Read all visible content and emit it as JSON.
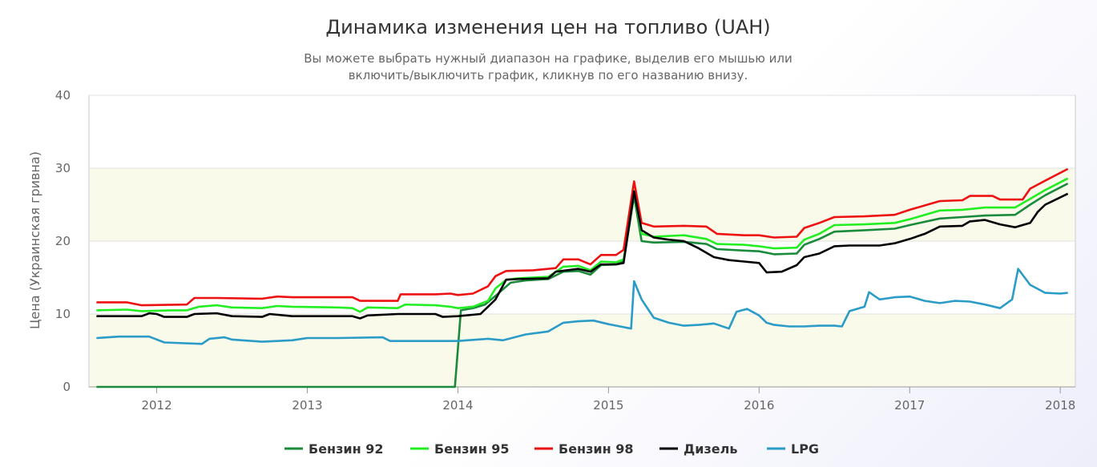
{
  "chart_data": {
    "type": "line",
    "title": "Динамика изменения цен на топливо (UAH)",
    "subtitle_lines": [
      "Вы можете выбрать нужный диапазон на графике, выделив его мышью или",
      "включить/выключить график, кликнув по его названию внизу."
    ],
    "ylabel": "Цена (Украинская гривна)",
    "xlabel": "",
    "ylim": [
      0,
      40
    ],
    "yticks": [
      0,
      10,
      20,
      30,
      40
    ],
    "xlim": [
      2011.55,
      2018.1
    ],
    "xticks": [
      "2012",
      "2013",
      "2014",
      "2015",
      "2016",
      "2017",
      "2018"
    ],
    "grid": true,
    "legend_position": "bottom",
    "band_color": "#fafaeb",
    "series": [
      {
        "name": "Бензин 92",
        "color": "#1a8a3c",
        "points": [
          [
            2011.6,
            0
          ],
          [
            2012,
            0
          ],
          [
            2012.5,
            0
          ],
          [
            2013,
            0
          ],
          [
            2013.5,
            0
          ],
          [
            2013.98,
            0
          ],
          [
            2014.02,
            10.5
          ],
          [
            2014.1,
            10.8
          ],
          [
            2014.18,
            11.3
          ],
          [
            2014.25,
            12.5
          ],
          [
            2014.35,
            14.3
          ],
          [
            2014.45,
            14.6
          ],
          [
            2014.6,
            14.8
          ],
          [
            2014.7,
            15.8
          ],
          [
            2014.8,
            15.9
          ],
          [
            2014.88,
            15.4
          ],
          [
            2014.95,
            16.7
          ],
          [
            2015.05,
            16.8
          ],
          [
            2015.1,
            17.2
          ],
          [
            2015.17,
            26.2
          ],
          [
            2015.22,
            20.0
          ],
          [
            2015.3,
            19.8
          ],
          [
            2015.5,
            19.9
          ],
          [
            2015.65,
            19.6
          ],
          [
            2015.72,
            18.9
          ],
          [
            2015.9,
            18.7
          ],
          [
            2016,
            18.6
          ],
          [
            2016.1,
            18.2
          ],
          [
            2016.25,
            18.3
          ],
          [
            2016.3,
            19.5
          ],
          [
            2016.4,
            20.3
          ],
          [
            2016.5,
            21.3
          ],
          [
            2016.7,
            21.5
          ],
          [
            2016.9,
            21.7
          ],
          [
            2017,
            22.2
          ],
          [
            2017.2,
            23.1
          ],
          [
            2017.35,
            23.3
          ],
          [
            2017.5,
            23.5
          ],
          [
            2017.7,
            23.6
          ],
          [
            2017.8,
            25.0
          ],
          [
            2017.9,
            26.3
          ],
          [
            2018.05,
            27.9
          ]
        ]
      },
      {
        "name": "Бензин 95",
        "color": "#22ee22",
        "points": [
          [
            2011.6,
            10.5
          ],
          [
            2011.8,
            10.6
          ],
          [
            2011.9,
            10.4
          ],
          [
            2012.1,
            10.5
          ],
          [
            2012.2,
            10.5
          ],
          [
            2012.28,
            11.0
          ],
          [
            2012.4,
            11.2
          ],
          [
            2012.5,
            10.9
          ],
          [
            2012.7,
            10.8
          ],
          [
            2012.8,
            11.1
          ],
          [
            2012.9,
            11.0
          ],
          [
            2013.2,
            10.9
          ],
          [
            2013.3,
            10.8
          ],
          [
            2013.35,
            10.3
          ],
          [
            2013.4,
            10.9
          ],
          [
            2013.6,
            10.8
          ],
          [
            2013.65,
            11.3
          ],
          [
            2013.85,
            11.2
          ],
          [
            2013.95,
            11.0
          ],
          [
            2014,
            10.8
          ],
          [
            2014.1,
            11.0
          ],
          [
            2014.2,
            11.8
          ],
          [
            2014.25,
            13.5
          ],
          [
            2014.32,
            14.7
          ],
          [
            2014.4,
            14.9
          ],
          [
            2014.6,
            15.1
          ],
          [
            2014.7,
            16.5
          ],
          [
            2014.8,
            16.6
          ],
          [
            2014.88,
            16.0
          ],
          [
            2014.95,
            17.2
          ],
          [
            2015.05,
            17.1
          ],
          [
            2015.1,
            17.5
          ],
          [
            2015.17,
            27.0
          ],
          [
            2015.22,
            21.0
          ],
          [
            2015.3,
            20.6
          ],
          [
            2015.5,
            20.8
          ],
          [
            2015.65,
            20.3
          ],
          [
            2015.72,
            19.6
          ],
          [
            2015.9,
            19.5
          ],
          [
            2016,
            19.3
          ],
          [
            2016.1,
            19.0
          ],
          [
            2016.25,
            19.1
          ],
          [
            2016.3,
            20.2
          ],
          [
            2016.4,
            21.0
          ],
          [
            2016.5,
            22.2
          ],
          [
            2016.7,
            22.3
          ],
          [
            2016.9,
            22.5
          ],
          [
            2017,
            23.0
          ],
          [
            2017.2,
            24.2
          ],
          [
            2017.35,
            24.3
          ],
          [
            2017.5,
            24.6
          ],
          [
            2017.7,
            24.6
          ],
          [
            2017.8,
            25.8
          ],
          [
            2017.9,
            27.0
          ],
          [
            2018.05,
            28.6
          ]
        ]
      },
      {
        "name": "Бензин 98",
        "color": "#ee1111",
        "points": [
          [
            2011.6,
            11.6
          ],
          [
            2011.8,
            11.6
          ],
          [
            2011.9,
            11.2
          ],
          [
            2012.2,
            11.3
          ],
          [
            2012.25,
            12.2
          ],
          [
            2012.4,
            12.2
          ],
          [
            2012.7,
            12.1
          ],
          [
            2012.8,
            12.4
          ],
          [
            2012.9,
            12.3
          ],
          [
            2013.3,
            12.3
          ],
          [
            2013.35,
            11.8
          ],
          [
            2013.6,
            11.8
          ],
          [
            2013.62,
            12.7
          ],
          [
            2013.85,
            12.7
          ],
          [
            2013.95,
            12.8
          ],
          [
            2014,
            12.6
          ],
          [
            2014.1,
            12.8
          ],
          [
            2014.2,
            13.8
          ],
          [
            2014.25,
            15.2
          ],
          [
            2014.32,
            15.9
          ],
          [
            2014.5,
            16.0
          ],
          [
            2014.65,
            16.3
          ],
          [
            2014.7,
            17.5
          ],
          [
            2014.8,
            17.5
          ],
          [
            2014.88,
            16.8
          ],
          [
            2014.95,
            18.1
          ],
          [
            2015.05,
            18.1
          ],
          [
            2015.1,
            18.8
          ],
          [
            2015.17,
            28.2
          ],
          [
            2015.22,
            22.5
          ],
          [
            2015.3,
            22.0
          ],
          [
            2015.5,
            22.1
          ],
          [
            2015.65,
            22.0
          ],
          [
            2015.72,
            21.0
          ],
          [
            2015.9,
            20.8
          ],
          [
            2016,
            20.8
          ],
          [
            2016.1,
            20.5
          ],
          [
            2016.25,
            20.6
          ],
          [
            2016.3,
            21.8
          ],
          [
            2016.4,
            22.5
          ],
          [
            2016.5,
            23.3
          ],
          [
            2016.7,
            23.4
          ],
          [
            2016.9,
            23.6
          ],
          [
            2017,
            24.3
          ],
          [
            2017.2,
            25.5
          ],
          [
            2017.35,
            25.6
          ],
          [
            2017.4,
            26.2
          ],
          [
            2017.55,
            26.2
          ],
          [
            2017.6,
            25.7
          ],
          [
            2017.75,
            25.7
          ],
          [
            2017.8,
            27.2
          ],
          [
            2017.9,
            28.3
          ],
          [
            2018.05,
            29.9
          ]
        ]
      },
      {
        "name": "Дизель",
        "color": "#000000",
        "points": [
          [
            2011.6,
            9.7
          ],
          [
            2011.9,
            9.7
          ],
          [
            2011.95,
            10.1
          ],
          [
            2012.0,
            10.0
          ],
          [
            2012.05,
            9.6
          ],
          [
            2012.2,
            9.6
          ],
          [
            2012.25,
            10.0
          ],
          [
            2012.4,
            10.1
          ],
          [
            2012.5,
            9.7
          ],
          [
            2012.7,
            9.6
          ],
          [
            2012.75,
            10.0
          ],
          [
            2012.9,
            9.7
          ],
          [
            2013.3,
            9.7
          ],
          [
            2013.35,
            9.4
          ],
          [
            2013.4,
            9.8
          ],
          [
            2013.6,
            10.0
          ],
          [
            2013.85,
            10.0
          ],
          [
            2013.9,
            9.6
          ],
          [
            2014,
            9.7
          ],
          [
            2014.15,
            10.0
          ],
          [
            2014.2,
            11.0
          ],
          [
            2014.25,
            12.0
          ],
          [
            2014.32,
            14.7
          ],
          [
            2014.4,
            14.8
          ],
          [
            2014.6,
            14.9
          ],
          [
            2014.65,
            15.8
          ],
          [
            2014.8,
            16.2
          ],
          [
            2014.88,
            15.8
          ],
          [
            2014.95,
            16.8
          ],
          [
            2015.05,
            16.8
          ],
          [
            2015.1,
            17.0
          ],
          [
            2015.17,
            26.8
          ],
          [
            2015.22,
            21.5
          ],
          [
            2015.3,
            20.5
          ],
          [
            2015.4,
            20.2
          ],
          [
            2015.5,
            20.0
          ],
          [
            2015.6,
            19.0
          ],
          [
            2015.7,
            17.8
          ],
          [
            2015.8,
            17.4
          ],
          [
            2015.9,
            17.2
          ],
          [
            2016,
            17.0
          ],
          [
            2016.05,
            15.7
          ],
          [
            2016.15,
            15.8
          ],
          [
            2016.25,
            16.7
          ],
          [
            2016.3,
            17.8
          ],
          [
            2016.4,
            18.3
          ],
          [
            2016.5,
            19.3
          ],
          [
            2016.6,
            19.4
          ],
          [
            2016.8,
            19.4
          ],
          [
            2016.9,
            19.7
          ],
          [
            2017,
            20.3
          ],
          [
            2017.1,
            21.0
          ],
          [
            2017.2,
            22.0
          ],
          [
            2017.35,
            22.1
          ],
          [
            2017.4,
            22.7
          ],
          [
            2017.5,
            22.9
          ],
          [
            2017.6,
            22.3
          ],
          [
            2017.7,
            21.9
          ],
          [
            2017.8,
            22.5
          ],
          [
            2017.85,
            24.0
          ],
          [
            2017.9,
            25.0
          ],
          [
            2018.05,
            26.5
          ]
        ]
      },
      {
        "name": "LPG",
        "color": "#2b9bc8",
        "points": [
          [
            2011.6,
            6.7
          ],
          [
            2011.75,
            6.9
          ],
          [
            2011.95,
            6.9
          ],
          [
            2012.05,
            6.1
          ],
          [
            2012.3,
            5.9
          ],
          [
            2012.35,
            6.6
          ],
          [
            2012.45,
            6.8
          ],
          [
            2012.5,
            6.5
          ],
          [
            2012.7,
            6.2
          ],
          [
            2012.9,
            6.4
          ],
          [
            2013,
            6.7
          ],
          [
            2013.2,
            6.7
          ],
          [
            2013.5,
            6.8
          ],
          [
            2013.55,
            6.3
          ],
          [
            2013.8,
            6.3
          ],
          [
            2014.0,
            6.3
          ],
          [
            2014.2,
            6.6
          ],
          [
            2014.3,
            6.4
          ],
          [
            2014.45,
            7.2
          ],
          [
            2014.6,
            7.6
          ],
          [
            2014.7,
            8.8
          ],
          [
            2014.8,
            9.0
          ],
          [
            2014.9,
            9.1
          ],
          [
            2015.0,
            8.6
          ],
          [
            2015.1,
            8.2
          ],
          [
            2015.15,
            8.0
          ],
          [
            2015.17,
            14.5
          ],
          [
            2015.22,
            12.0
          ],
          [
            2015.3,
            9.5
          ],
          [
            2015.4,
            8.8
          ],
          [
            2015.5,
            8.4
          ],
          [
            2015.6,
            8.5
          ],
          [
            2015.7,
            8.7
          ],
          [
            2015.8,
            8.0
          ],
          [
            2015.85,
            10.3
          ],
          [
            2015.92,
            10.7
          ],
          [
            2016,
            9.8
          ],
          [
            2016.05,
            8.8
          ],
          [
            2016.1,
            8.5
          ],
          [
            2016.2,
            8.3
          ],
          [
            2016.3,
            8.3
          ],
          [
            2016.4,
            8.4
          ],
          [
            2016.5,
            8.4
          ],
          [
            2016.55,
            8.3
          ],
          [
            2016.6,
            10.4
          ],
          [
            2016.7,
            11.0
          ],
          [
            2016.73,
            13.0
          ],
          [
            2016.8,
            12.0
          ],
          [
            2016.9,
            12.3
          ],
          [
            2017,
            12.4
          ],
          [
            2017.1,
            11.8
          ],
          [
            2017.2,
            11.5
          ],
          [
            2017.3,
            11.8
          ],
          [
            2017.4,
            11.7
          ],
          [
            2017.5,
            11.3
          ],
          [
            2017.6,
            10.8
          ],
          [
            2017.68,
            12.0
          ],
          [
            2017.72,
            16.2
          ],
          [
            2017.8,
            14.0
          ],
          [
            2017.9,
            12.9
          ],
          [
            2018.0,
            12.8
          ],
          [
            2018.05,
            12.9
          ]
        ]
      }
    ]
  }
}
